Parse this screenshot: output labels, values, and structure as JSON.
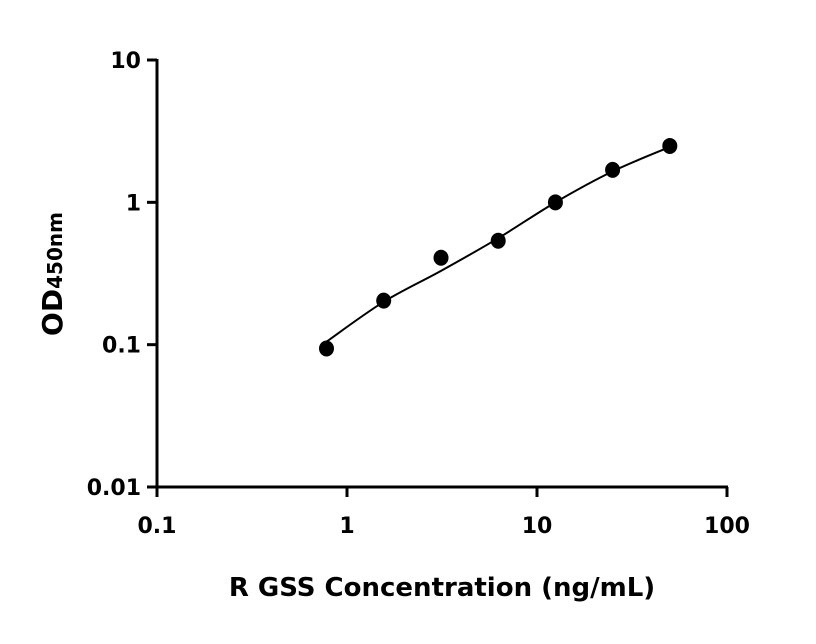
{
  "chart_data": {
    "type": "scatter",
    "title": "",
    "xlabel": "R GSS Concentration (ng/mL)",
    "ylabel_main": "OD",
    "ylabel_sub": "450nm",
    "x_scale": "log",
    "y_scale": "log",
    "xlim": [
      0.1,
      100
    ],
    "ylim": [
      0.01,
      10
    ],
    "x_ticks": [
      0.1,
      1,
      10,
      100
    ],
    "x_tick_labels": [
      "0.1",
      "1",
      "10",
      "100"
    ],
    "y_ticks": [
      0.01,
      0.1,
      1,
      10
    ],
    "y_tick_labels": [
      "0.01",
      "0.1",
      "1",
      "10"
    ],
    "grid": false,
    "series": [
      {
        "x": [
          0.78,
          1.56,
          3.125,
          6.25,
          12.5,
          25,
          50
        ],
        "y": [
          0.094,
          0.204,
          0.408,
          0.537,
          1.0,
          1.69,
          2.49
        ]
      }
    ],
    "fit_curve": {
      "x": [
        0.78,
        1.56,
        3.125,
        6.25,
        12.5,
        25,
        50
      ],
      "y": [
        0.105,
        0.2,
        0.33,
        0.56,
        1.0,
        1.65,
        2.45
      ]
    },
    "colors": {
      "points": "#000000",
      "line": "#000000"
    }
  }
}
